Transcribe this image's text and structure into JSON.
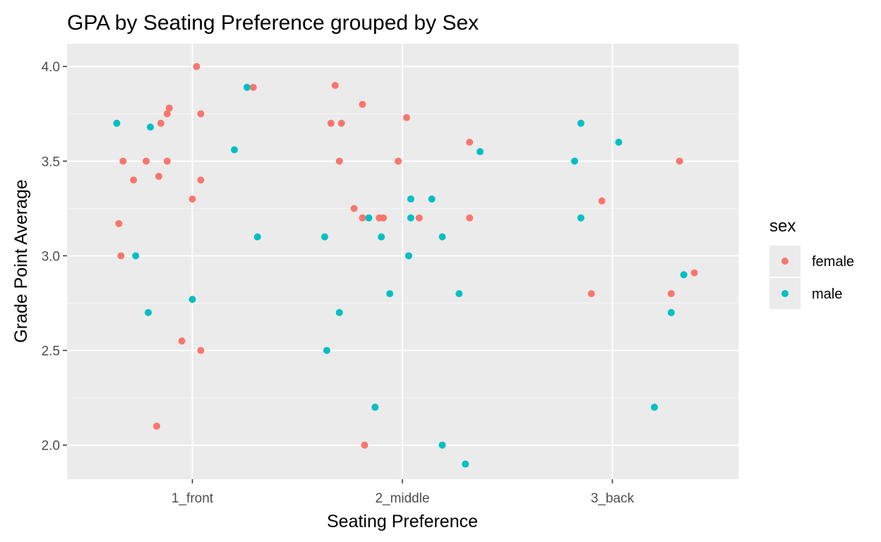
{
  "chart_data": {
    "type": "scatter",
    "title": "GPA by Seating Preference grouped by Sex",
    "xlabel": "Seating Preference",
    "ylabel": "Grade Point Average",
    "categories": [
      "1_front",
      "2_middle",
      "3_back"
    ],
    "ylim": [
      1.82,
      4.12
    ],
    "yticks": [
      "2.0",
      "2.5",
      "3.0",
      "3.5",
      "4.0"
    ],
    "grid": true,
    "legend": {
      "title": "sex",
      "position": "right",
      "entries": [
        "female",
        "male"
      ]
    },
    "colors": {
      "female": "#F8766D",
      "male": "#00BFC4",
      "panel": "#EBEBEB",
      "grid": "#FFFFFF"
    },
    "series": [
      {
        "name": "female",
        "points": [
          {
            "x": 1.02,
            "y": 4.0
          },
          {
            "x": 1.29,
            "y": 3.89
          },
          {
            "x": 0.89,
            "y": 3.78
          },
          {
            "x": 1.04,
            "y": 3.75
          },
          {
            "x": 0.88,
            "y": 3.75
          },
          {
            "x": 0.85,
            "y": 3.7
          },
          {
            "x": 0.67,
            "y": 3.5
          },
          {
            "x": 0.78,
            "y": 3.5
          },
          {
            "x": 0.88,
            "y": 3.5
          },
          {
            "x": 0.72,
            "y": 3.4
          },
          {
            "x": 0.84,
            "y": 3.42
          },
          {
            "x": 1.04,
            "y": 3.4
          },
          {
            "x": 1.0,
            "y": 3.3
          },
          {
            "x": 0.65,
            "y": 3.17
          },
          {
            "x": 0.66,
            "y": 3.0
          },
          {
            "x": 0.95,
            "y": 2.55
          },
          {
            "x": 1.04,
            "y": 2.5
          },
          {
            "x": 0.83,
            "y": 2.1
          },
          {
            "x": 1.68,
            "y": 3.9
          },
          {
            "x": 1.81,
            "y": 3.8
          },
          {
            "x": 2.02,
            "y": 3.73
          },
          {
            "x": 1.66,
            "y": 3.7
          },
          {
            "x": 1.71,
            "y": 3.7
          },
          {
            "x": 1.7,
            "y": 3.5
          },
          {
            "x": 1.98,
            "y": 3.5
          },
          {
            "x": 2.32,
            "y": 3.6
          },
          {
            "x": 1.77,
            "y": 3.25
          },
          {
            "x": 1.81,
            "y": 3.2
          },
          {
            "x": 1.89,
            "y": 3.2
          },
          {
            "x": 1.91,
            "y": 3.2
          },
          {
            "x": 2.08,
            "y": 3.2
          },
          {
            "x": 2.32,
            "y": 3.2
          },
          {
            "x": 1.82,
            "y": 2.0
          },
          {
            "x": 3.32,
            "y": 3.5
          },
          {
            "x": 2.95,
            "y": 3.29
          },
          {
            "x": 2.9,
            "y": 2.8
          },
          {
            "x": 3.28,
            "y": 2.8
          },
          {
            "x": 3.39,
            "y": 2.91
          }
        ]
      },
      {
        "name": "male",
        "points": [
          {
            "x": 1.26,
            "y": 3.89
          },
          {
            "x": 0.64,
            "y": 3.7
          },
          {
            "x": 0.8,
            "y": 3.68
          },
          {
            "x": 1.2,
            "y": 3.56
          },
          {
            "x": 1.31,
            "y": 3.1
          },
          {
            "x": 0.73,
            "y": 3.0
          },
          {
            "x": 0.79,
            "y": 2.7
          },
          {
            "x": 1.0,
            "y": 2.77
          },
          {
            "x": 2.37,
            "y": 3.55
          },
          {
            "x": 1.84,
            "y": 3.2
          },
          {
            "x": 2.04,
            "y": 3.3
          },
          {
            "x": 2.14,
            "y": 3.3
          },
          {
            "x": 2.04,
            "y": 3.2
          },
          {
            "x": 1.63,
            "y": 3.1
          },
          {
            "x": 1.9,
            "y": 3.1
          },
          {
            "x": 2.19,
            "y": 3.1
          },
          {
            "x": 2.03,
            "y": 3.0
          },
          {
            "x": 1.94,
            "y": 2.8
          },
          {
            "x": 2.27,
            "y": 2.8
          },
          {
            "x": 1.7,
            "y": 2.7
          },
          {
            "x": 1.64,
            "y": 2.5
          },
          {
            "x": 1.87,
            "y": 2.2
          },
          {
            "x": 2.19,
            "y": 2.0
          },
          {
            "x": 2.3,
            "y": 1.9
          },
          {
            "x": 3.03,
            "y": 3.6
          },
          {
            "x": 2.85,
            "y": 3.7
          },
          {
            "x": 2.82,
            "y": 3.5
          },
          {
            "x": 2.85,
            "y": 3.2
          },
          {
            "x": 3.34,
            "y": 2.9
          },
          {
            "x": 3.28,
            "y": 2.7
          },
          {
            "x": 3.2,
            "y": 2.2
          }
        ]
      }
    ]
  }
}
